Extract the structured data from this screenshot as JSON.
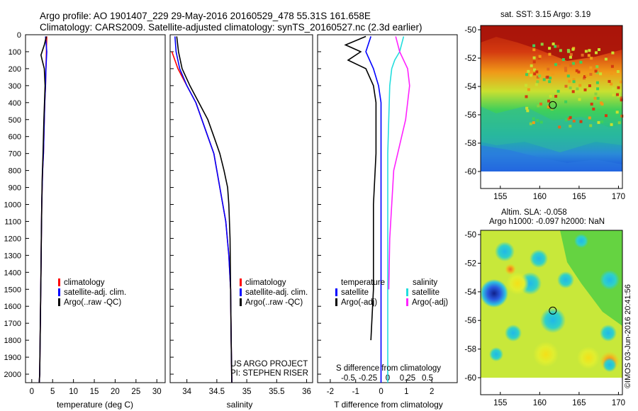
{
  "header": {
    "line1": "Argo profile: AO 1901407_229 29-May-2016 20160529_478 55.31S 161.658E",
    "line2": "Climatology: CARS2009. Satellite-adjusted climatology: synTS_20160527.nc (2.3d earlier)"
  },
  "colors": {
    "climatology": "#ff0000",
    "satellite": "#0000ff",
    "argo": "#000000",
    "sat_salinity": "#22dddd",
    "argo_salinity_adj": "#ff22ff"
  },
  "depth_axis": {
    "ticks": [
      0,
      100,
      200,
      300,
      400,
      500,
      600,
      700,
      800,
      900,
      1000,
      1100,
      1200,
      1300,
      1400,
      1500,
      1600,
      1700,
      1800,
      1900,
      2000
    ],
    "range": [
      0,
      2050
    ]
  },
  "chart_data": [
    {
      "type": "line",
      "id": "temperature",
      "xlabel": "temperature (deg C)",
      "xlim": [
        -1.5,
        32
      ],
      "xticks": [
        0,
        5,
        10,
        15,
        20,
        25,
        30
      ],
      "ylim": [
        0,
        2050
      ],
      "legend": [
        "climatology",
        "satellite-adj. clim.",
        "Argo(..raw -QC)"
      ],
      "series": [
        {
          "name": "climatology",
          "color": "#ff0000",
          "x": [
            3.6,
            3.5,
            3.4,
            3.3,
            3.1,
            2.9,
            2.8,
            2.6,
            2.5,
            2.4,
            2.3,
            2.2,
            2.1,
            2.0,
            1.9,
            1.8
          ],
          "y": [
            10,
            100,
            200,
            300,
            400,
            600,
            700,
            800,
            900,
            1000,
            1200,
            1400,
            1600,
            1800,
            2000,
            2050
          ]
        },
        {
          "name": "satellite-adj. clim.",
          "color": "#0000ff",
          "x": [
            3.3,
            3.6,
            3.4,
            3.3,
            3.1,
            2.9,
            2.8,
            2.6,
            2.5,
            2.4,
            2.3,
            2.2,
            2.1,
            2.0,
            1.9,
            1.8
          ],
          "y": [
            10,
            100,
            200,
            300,
            400,
            600,
            700,
            800,
            900,
            1000,
            1200,
            1400,
            1600,
            1800,
            2000,
            2050
          ]
        },
        {
          "name": "Argo(..raw -QC)",
          "color": "#000000",
          "x": [
            3.5,
            3.0,
            2.2,
            2.5,
            3.0,
            3.2,
            2.9,
            2.7,
            2.5,
            2.4,
            2.3,
            2.2,
            2.1,
            2.0,
            1.9,
            1.8
          ],
          "y": [
            10,
            60,
            120,
            150,
            200,
            300,
            500,
            700,
            850,
            1000,
            1200,
            1400,
            1600,
            1800,
            2000,
            2050
          ]
        }
      ]
    },
    {
      "type": "line",
      "id": "salinity",
      "xlabel": "salinity",
      "xlim": [
        33.72,
        36.1
      ],
      "xticks": [
        34,
        34.5,
        35,
        35.5,
        36
      ],
      "xticklabels": [
        "34",
        "34.5",
        "35",
        "35.5",
        "36"
      ],
      "ylim": [
        0,
        2050
      ],
      "legend": [
        "climatology",
        "satellite-adj. clim.",
        "Argo(..raw -QC)"
      ],
      "annotations": [
        "US ARGO PROJECT",
        "PI: STEPHEN RISER"
      ],
      "series": [
        {
          "name": "climatology",
          "color": "#ff0000",
          "x": [
            33.75,
            33.85,
            34.0,
            34.15,
            34.25,
            34.35,
            34.45,
            34.5,
            34.55,
            34.6,
            34.65,
            34.7,
            34.73,
            34.74,
            34.75
          ],
          "y": [
            100,
            200,
            300,
            400,
            500,
            600,
            700,
            800,
            900,
            1000,
            1100,
            1300,
            1500,
            1800,
            2050
          ]
        },
        {
          "name": "satellite-adj. clim.",
          "color": "#0000ff",
          "x": [
            33.8,
            33.82,
            33.88,
            34.0,
            34.15,
            34.25,
            34.35,
            34.45,
            34.5,
            34.55,
            34.6,
            34.65,
            34.7,
            34.73,
            34.74,
            34.75
          ],
          "y": [
            10,
            100,
            200,
            300,
            400,
            500,
            600,
            700,
            800,
            900,
            1000,
            1100,
            1300,
            1500,
            1800,
            2050
          ]
        },
        {
          "name": "Argo(..raw -QC)",
          "color": "#000000",
          "x": [
            33.83,
            33.86,
            33.92,
            34.05,
            34.2,
            34.35,
            34.45,
            34.55,
            34.62,
            34.68,
            34.7,
            34.72,
            34.73,
            34.74,
            34.75
          ],
          "y": [
            10,
            100,
            200,
            300,
            400,
            500,
            600,
            700,
            800,
            900,
            1000,
            1200,
            1500,
            1800,
            2050
          ]
        }
      ]
    },
    {
      "type": "line",
      "id": "difference",
      "xlabel": "T difference from climatology",
      "xlabel_top": "S difference from climatology",
      "xlim": [
        -2.5,
        3.0
      ],
      "xticks": [
        -2,
        -1,
        0,
        1,
        2
      ],
      "xticks_top": [
        -0.5,
        -0.25,
        0,
        0.25,
        0.5
      ],
      "ylim": [
        0,
        2050
      ],
      "legend_temperature": {
        "title": "temperature",
        "items": [
          "satellite",
          "Argo(-adj)"
        ]
      },
      "legend_salinity": {
        "title": "salinity",
        "items": [
          "satellite",
          "Argo(-adj)"
        ]
      },
      "series": [
        {
          "name": "temperature satellite",
          "color": "#0000ff",
          "x": [
            -0.4,
            -0.6,
            -0.3,
            -0.1,
            0.0,
            0.0,
            0.0,
            0.0
          ],
          "y": [
            10,
            100,
            200,
            300,
            400,
            700,
            1200,
            2050
          ]
        },
        {
          "name": "temperature Argo(-adj)",
          "color": "#000000",
          "x": [
            -0.6,
            -1.4,
            -0.8,
            -1.3,
            -0.6,
            -0.3,
            -0.2,
            -0.2,
            -0.3,
            -0.3,
            -0.4
          ],
          "y": [
            10,
            60,
            100,
            150,
            200,
            300,
            400,
            700,
            1000,
            1500,
            1800
          ]
        },
        {
          "name": "salinity satellite",
          "color": "#22dddd",
          "x": [
            0.8,
            0.6,
            0.35,
            0.2,
            0.1,
            0.05,
            0.0,
            0.0
          ],
          "y": [
            10,
            100,
            150,
            200,
            300,
            500,
            700,
            2050
          ]
        },
        {
          "name": "salinity Argo(-adj)",
          "color": "#ff22ff",
          "x": [
            0.4,
            0.6,
            1.0,
            1.1,
            1.0,
            0.9,
            0.7,
            0.5,
            0.3,
            0.2,
            0.1,
            0.05
          ],
          "y": [
            10,
            100,
            200,
            300,
            400,
            500,
            600,
            700,
            800,
            1000,
            1200,
            1500
          ]
        }
      ]
    }
  ],
  "maps": [
    {
      "id": "sst-map",
      "title": "sat. SST: 3.15 Argo: 3.19",
      "xticks": [
        155,
        160,
        165,
        170
      ],
      "yticks": [
        -50,
        -52,
        -54,
        -56,
        -58,
        -60
      ],
      "marker_lon": 161.658,
      "marker_lat": -55.31
    },
    {
      "id": "sla-map",
      "title1": "Altim. SLA: -0.058",
      "title2": "Argo h1000: -0.097 h2000: NaN",
      "xticks": [
        155,
        160,
        165,
        170
      ],
      "yticks": [
        -50,
        -52,
        -54,
        -56,
        -58,
        -60
      ],
      "marker_lon": 161.658,
      "marker_lat": -55.31
    }
  ],
  "credit": "©IMOS 03-Jun-2016 20:41:56"
}
